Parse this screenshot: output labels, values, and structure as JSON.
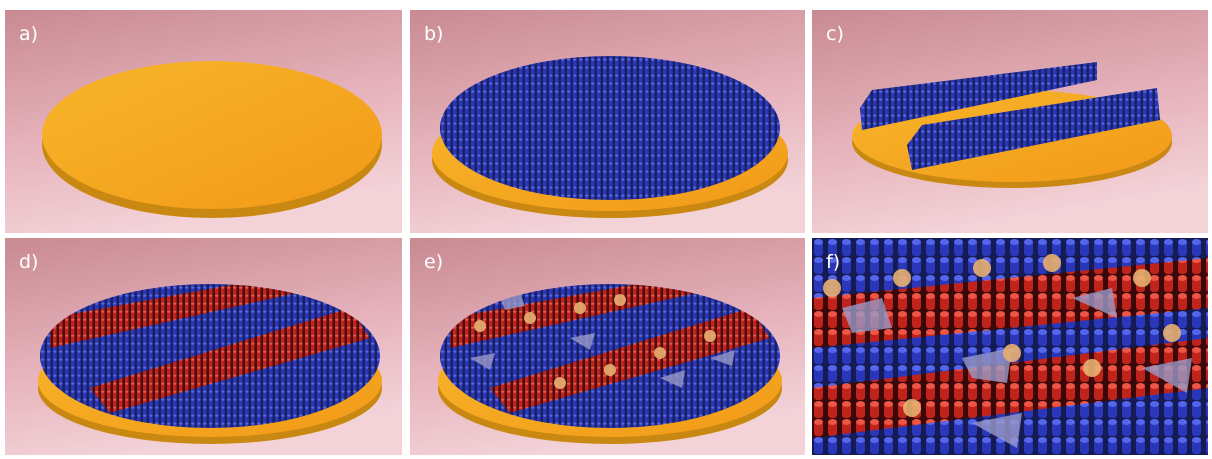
{
  "panels": [
    {
      "label": "a)"
    },
    {
      "label": "b)"
    },
    {
      "label": "c)"
    },
    {
      "label": "d)"
    },
    {
      "label": "e)"
    },
    {
      "label": "f)"
    }
  ]
}
